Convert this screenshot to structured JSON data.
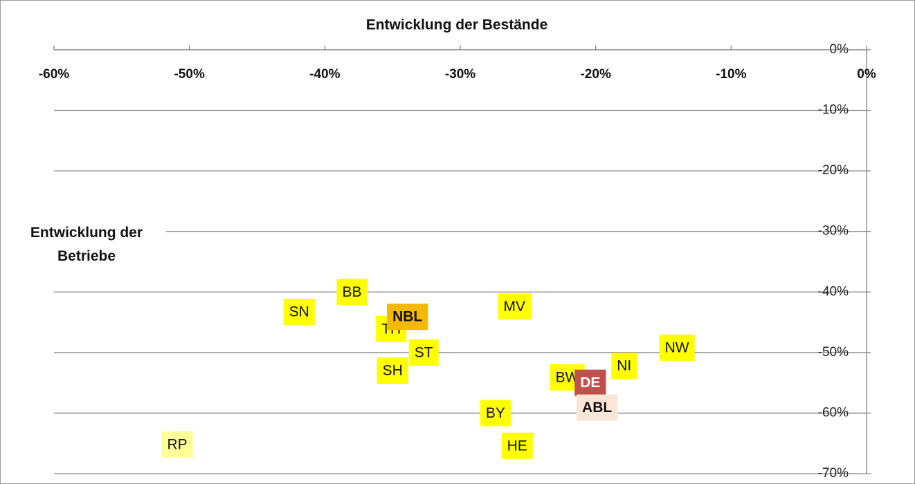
{
  "chart_data": {
    "type": "scatter",
    "title": "Entwicklung der Bestände",
    "ylabel": "Entwicklung der Betriebe",
    "labels": [
      "SN",
      "BB",
      "TH",
      "NBL",
      "ST",
      "SH",
      "MV",
      "BY",
      "HE",
      "BW",
      "DE",
      "ABL",
      "NI",
      "NW",
      "RP"
    ],
    "x": [
      -41.9,
      -38.0,
      -35.1,
      -33.9,
      -32.7,
      -35.0,
      -26.0,
      -27.4,
      -25.8,
      -22.1,
      -20.4,
      -19.9,
      -17.9,
      -14.0,
      -50.9
    ],
    "values": [
      -43.3,
      -40.0,
      -46.1,
      -44.1,
      -50.0,
      -53.0,
      -42.4,
      -60.0,
      -65.4,
      -54.1,
      -55.0,
      -59.1,
      -52.2,
      -49.2,
      -65.2
    ],
    "colors": [
      "#ffff00",
      "#ffff00",
      "#ffff00",
      "#f5b800",
      "#ffff00",
      "#ffff00",
      "#ffff00",
      "#ffff00",
      "#ffff00",
      "#ffff00",
      "#c0504d",
      "#fbe5d6",
      "#ffff00",
      "#ffff00",
      "#ffff99"
    ],
    "bold": [
      false,
      false,
      false,
      true,
      false,
      false,
      false,
      false,
      false,
      false,
      true,
      true,
      false,
      false,
      false
    ],
    "xlim": [
      -60,
      0
    ],
    "ylim": [
      -70,
      0
    ],
    "xticks": [
      {
        "value": -60,
        "label": "-60%"
      },
      {
        "value": -50,
        "label": "-50%"
      },
      {
        "value": -40,
        "label": "-40%"
      },
      {
        "value": -30,
        "label": "-30%"
      },
      {
        "value": -20,
        "label": "-20%"
      },
      {
        "value": -10,
        "label": "-10%"
      },
      {
        "value": 0,
        "label": "0%"
      }
    ],
    "yticks": [
      {
        "value": 0,
        "label": "0%"
      },
      {
        "value": -10,
        "label": "-10%"
      },
      {
        "value": -20,
        "label": "-20%"
      },
      {
        "value": -30,
        "label": "-30%"
      },
      {
        "value": -40,
        "label": "-40%"
      },
      {
        "value": -50,
        "label": "-50%"
      },
      {
        "value": -60,
        "label": "-60%"
      },
      {
        "value": -70,
        "label": "-70%"
      }
    ],
    "grid": true
  }
}
